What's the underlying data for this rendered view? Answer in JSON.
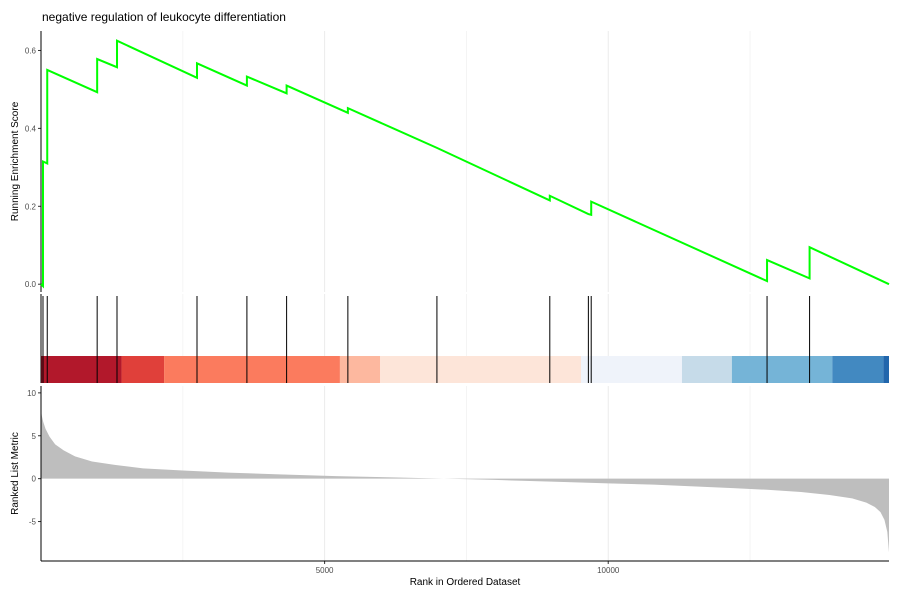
{
  "chart_data": {
    "type": "line",
    "title": "negative regulation of leukocyte differentiation",
    "xlabel": "Rank in Ordered Dataset",
    "x_range": [
      0,
      14950
    ],
    "x_ticks": [
      5000,
      10000
    ],
    "grid": "vertical-minor",
    "panels": {
      "enrichment": {
        "ylabel": "Running Enrichment Score",
        "ylim": [
          -0.02,
          0.65
        ],
        "y_ticks": [
          0.0,
          0.2,
          0.4,
          0.6
        ],
        "line_color": "#00ff00",
        "series": [
          {
            "x": [
              0,
              0,
              35,
              35,
              110,
              110,
              990,
              990,
              1340,
              1340,
              2750,
              2750,
              3630,
              3630,
              4330,
              4330,
              5410,
              5410,
              6980,
              8970,
              8970,
              9650,
              9700,
              9700,
              12800,
              12800,
              13550,
              13550,
              14950
            ],
            "y": [
              0.0,
              0.0,
              -0.005,
              0.315,
              0.31,
              0.55,
              0.493,
              0.578,
              0.557,
              0.625,
              0.53,
              0.567,
              0.51,
              0.533,
              0.49,
              0.51,
              0.44,
              0.452,
              0.35,
              0.215,
              0.227,
              0.18,
              0.178,
              0.212,
              0.008,
              0.062,
              0.015,
              0.095,
              0.0
            ]
          }
        ]
      },
      "hits": {
        "positions": [
          35,
          110,
          990,
          1340,
          2750,
          3630,
          4330,
          5410,
          6980,
          8970,
          9650,
          9700,
          12800,
          13550
        ],
        "color_bands": [
          {
            "from": 0,
            "to": 1420,
            "color": "#b2182b"
          },
          {
            "from": 1420,
            "to": 2170,
            "color": "#e0403a"
          },
          {
            "from": 2170,
            "to": 5270,
            "color": "#fb7b5e"
          },
          {
            "from": 5270,
            "to": 5980,
            "color": "#fdb89f"
          },
          {
            "from": 5980,
            "to": 9520,
            "color": "#fde5d9"
          },
          {
            "from": 9520,
            "to": 11300,
            "color": "#eff3fa"
          },
          {
            "from": 11300,
            "to": 12180,
            "color": "#c6dbe9"
          },
          {
            "from": 12180,
            "to": 13950,
            "color": "#75b4d7"
          },
          {
            "from": 13950,
            "to": 14850,
            "color": "#4289c1"
          },
          {
            "from": 14850,
            "to": 14950,
            "color": "#2166ac"
          }
        ]
      },
      "ranked_metric": {
        "ylabel": "Ranked List Metric",
        "ylim": [
          -9.6,
          10.8
        ],
        "y_ticks": [
          -5,
          0,
          5,
          10
        ],
        "y_tick_labels": [
          "-5",
          "0",
          "5",
          "10"
        ],
        "fill_color": "#bebebe",
        "curve": {
          "x": [
            0,
            15,
            40,
            80,
            150,
            250,
            400,
            600,
            900,
            1300,
            1800,
            2500,
            3300,
            4200,
            5200,
            6200,
            7100,
            8000,
            9000,
            10000,
            10800,
            11500,
            12200,
            12800,
            13400,
            13900,
            14300,
            14550,
            14700,
            14800,
            14870,
            14920,
            14950
          ],
          "y": [
            8.0,
            7.3,
            6.6,
            5.8,
            4.9,
            4.0,
            3.3,
            2.6,
            2.0,
            1.6,
            1.2,
            0.95,
            0.7,
            0.5,
            0.3,
            0.15,
            0.0,
            -0.15,
            -0.35,
            -0.55,
            -0.7,
            -0.9,
            -1.1,
            -1.3,
            -1.55,
            -1.9,
            -2.3,
            -2.8,
            -3.3,
            -3.9,
            -4.8,
            -6.2,
            -8.6
          ]
        }
      }
    }
  }
}
